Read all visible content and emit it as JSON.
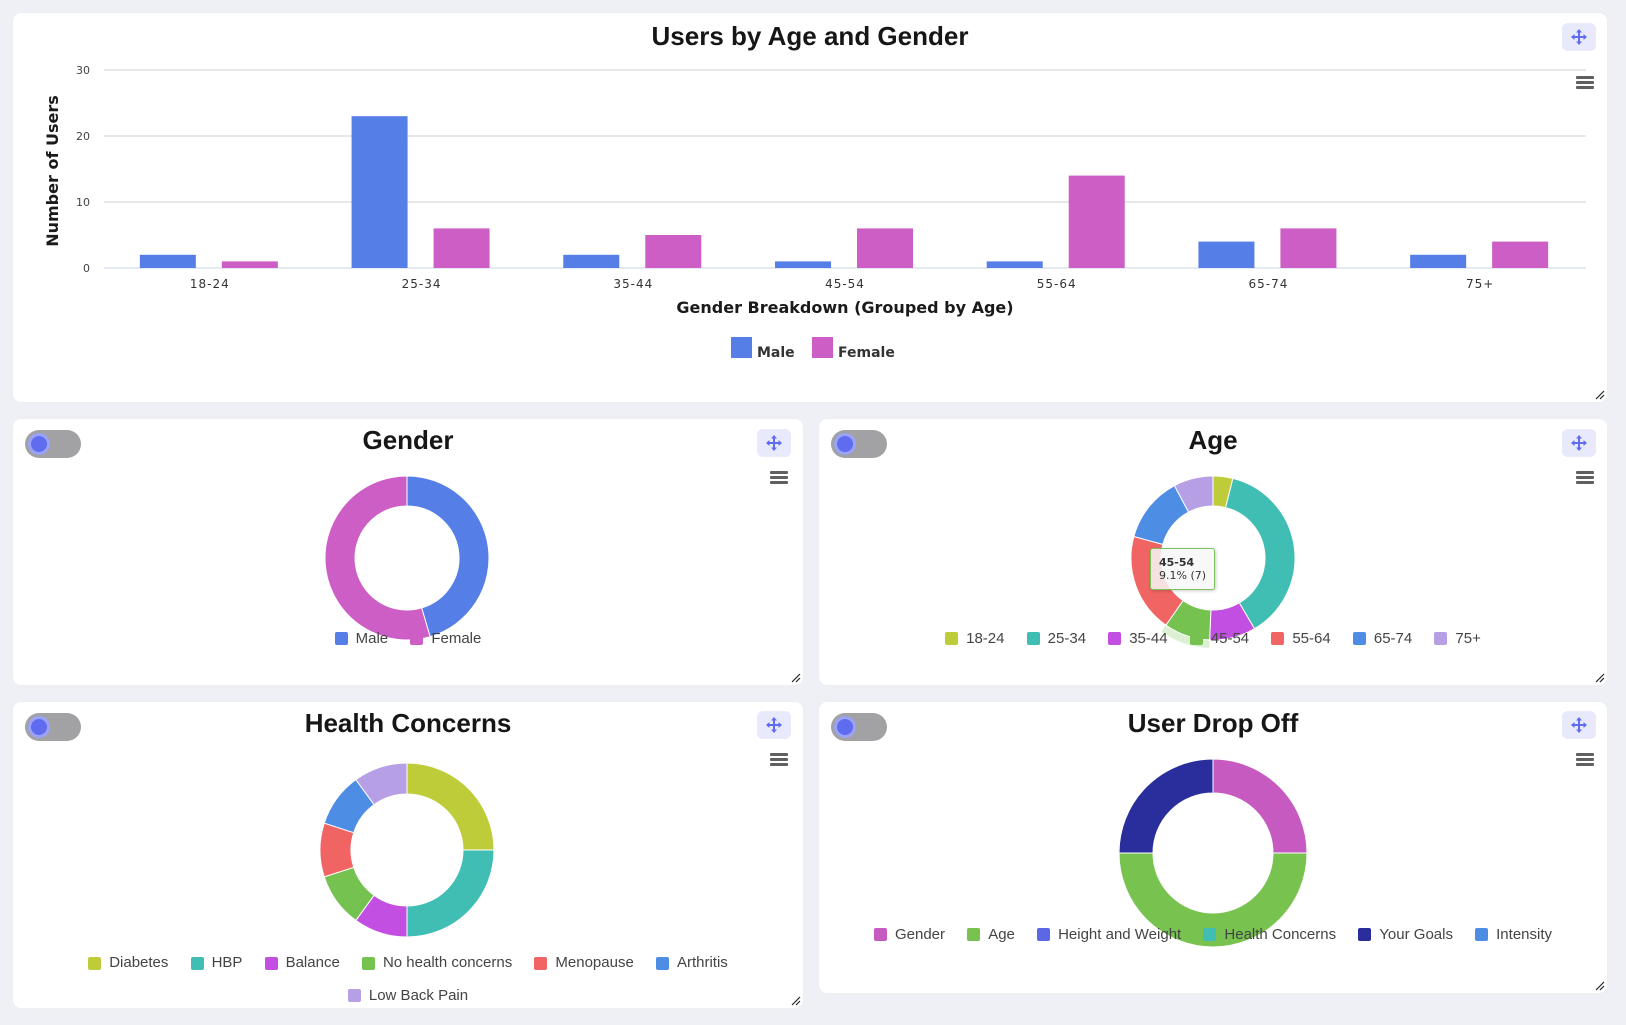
{
  "colors": {
    "male": "#557ee6",
    "female": "#cc5ec6",
    "accent": "#5f6cf0",
    "move_bg": "#e8eafc"
  },
  "icons": {
    "move": "move-arrows-icon",
    "menu": "hamburger-menu-icon",
    "resize": "resize-handle-icon",
    "toggle": "toggle-switch-icon"
  },
  "chart_data": [
    {
      "type": "bar",
      "title": "Users by Age and Gender",
      "xlabel": "Gender Breakdown (Grouped by Age)",
      "ylabel": "Number of Users",
      "ylim": [
        0,
        30
      ],
      "yticks": [
        "0",
        "10",
        "20",
        "30"
      ],
      "grid": true,
      "legend": "bottom",
      "categories": [
        "18-24",
        "25-34",
        "35-44",
        "45-54",
        "55-64",
        "65-74",
        "75+"
      ],
      "series": [
        {
          "name": "Male",
          "color": "#557ee6",
          "values": [
            2,
            23,
            2,
            1,
            1,
            4,
            2
          ]
        },
        {
          "name": "Female",
          "color": "#cc5ec6",
          "values": [
            1,
            6,
            5,
            6,
            14,
            6,
            4
          ]
        }
      ]
    },
    {
      "type": "pie",
      "title": "Gender",
      "legend": "bottom",
      "labels": [
        "Male",
        "Female"
      ],
      "values": [
        35,
        42
      ],
      "colors": [
        "#557ee6",
        "#cc5ec6"
      ]
    },
    {
      "type": "pie",
      "title": "Age",
      "legend": "bottom",
      "labels": [
        "18-24",
        "25-34",
        "35-44",
        "45-54",
        "55-64",
        "65-74",
        "75+"
      ],
      "values": [
        3,
        29,
        7,
        7,
        15,
        10,
        6
      ],
      "colors": [
        "#bfcc3a",
        "#40beb3",
        "#c24ee2",
        "#76c250",
        "#f06464",
        "#4e8de4",
        "#b79fe6"
      ],
      "tooltip": {
        "label": "45-54",
        "value": "9.1% (7)"
      }
    },
    {
      "type": "pie",
      "title": "Health Concerns",
      "legend": "bottom",
      "labels": [
        "Diabetes",
        "HBP",
        "Balance",
        "No health concerns",
        "Menopause",
        "Arthritis",
        "Low Back Pain"
      ],
      "values": [
        25,
        25,
        10,
        10,
        10,
        10,
        10
      ],
      "colors": [
        "#bfcc3a",
        "#40beb3",
        "#c24ee2",
        "#76c250",
        "#f06464",
        "#4e8de4",
        "#b79fe6"
      ]
    },
    {
      "type": "pie",
      "title": "User Drop Off",
      "legend": "bottom",
      "labels": [
        "Gender",
        "Age",
        "Height and Weight",
        "Health Concerns",
        "Your Goals",
        "Intensity"
      ],
      "values": [
        1,
        2,
        0,
        0,
        1,
        0
      ],
      "colors": [
        "#c65ac0",
        "#78c250",
        "#5b67e4",
        "#40beb3",
        "#2a2e9c",
        "#4e8de4"
      ]
    }
  ]
}
